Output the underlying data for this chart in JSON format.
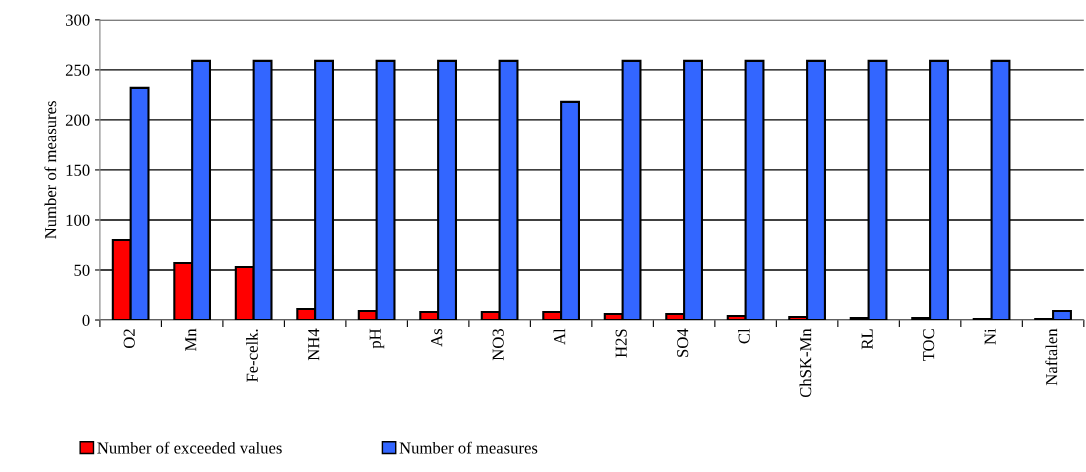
{
  "chart_data": {
    "type": "bar",
    "ylabel": "Number of measures",
    "categories": [
      "O2",
      "Mn",
      "Fe-celk.",
      "NH4",
      "pH",
      "As",
      "NO3",
      "Al",
      "H2S",
      "SO4",
      "Cl",
      "ChSK-Mn",
      "RL",
      "TOC",
      "Ni",
      "Naftalen"
    ],
    "series": [
      {
        "name": "Number of exceeded values",
        "color": "#ff0000",
        "values": [
          80,
          57,
          53,
          11,
          9,
          8,
          8,
          8,
          6,
          6,
          4,
          3,
          2,
          2,
          1,
          1
        ]
      },
      {
        "name": "Number of measures",
        "color": "#3366ff",
        "values": [
          232,
          259,
          259,
          259,
          259,
          259,
          259,
          218,
          259,
          259,
          259,
          259,
          259,
          259,
          259,
          9
        ]
      }
    ],
    "ylim": [
      0,
      300
    ],
    "yticks": [
      0,
      50,
      100,
      150,
      200,
      250,
      300
    ],
    "grid": "y",
    "legend": "bottom left"
  }
}
